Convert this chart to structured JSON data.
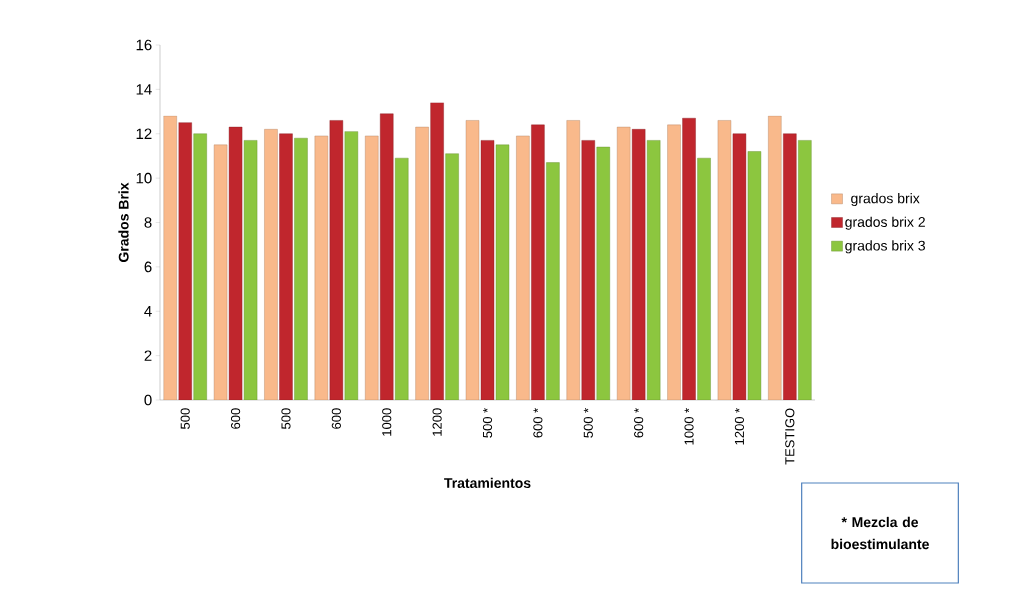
{
  "chart_data": {
    "type": "bar",
    "xlabel": "Tratamientos",
    "ylabel": "Grados Brix",
    "categories": [
      "500",
      "600",
      "500",
      "600",
      "1000",
      "1200",
      "500 *",
      "600 *",
      "500 *",
      "600 *",
      "1000 *",
      "1200 *",
      "TESTIGO"
    ],
    "series": [
      {
        "name": "grados brix",
        "color": "#f9b98b",
        "values": [
          12.8,
          11.5,
          12.2,
          11.9,
          11.9,
          12.3,
          12.6,
          11.9,
          12.6,
          12.3,
          12.4,
          12.6,
          12.8
        ]
      },
      {
        "name": "grados brix 2",
        "color": "#c0262d",
        "values": [
          12.5,
          12.3,
          12.0,
          12.6,
          12.9,
          13.4,
          11.7,
          12.4,
          11.7,
          12.2,
          12.7,
          12.0,
          12.0
        ]
      },
      {
        "name": "grados brix 3",
        "color": "#8cc63f",
        "values": [
          12.0,
          11.7,
          11.8,
          12.1,
          10.9,
          11.1,
          11.5,
          10.7,
          11.4,
          11.7,
          10.9,
          11.2,
          11.7
        ]
      }
    ],
    "ylim": [
      0,
      16
    ],
    "yticks": [
      0,
      2,
      4,
      6,
      8,
      10,
      12,
      14,
      16
    ],
    "grid": false,
    "legend": "right",
    "annotations": [
      "*    Mezcla de bioestimulante"
    ]
  }
}
